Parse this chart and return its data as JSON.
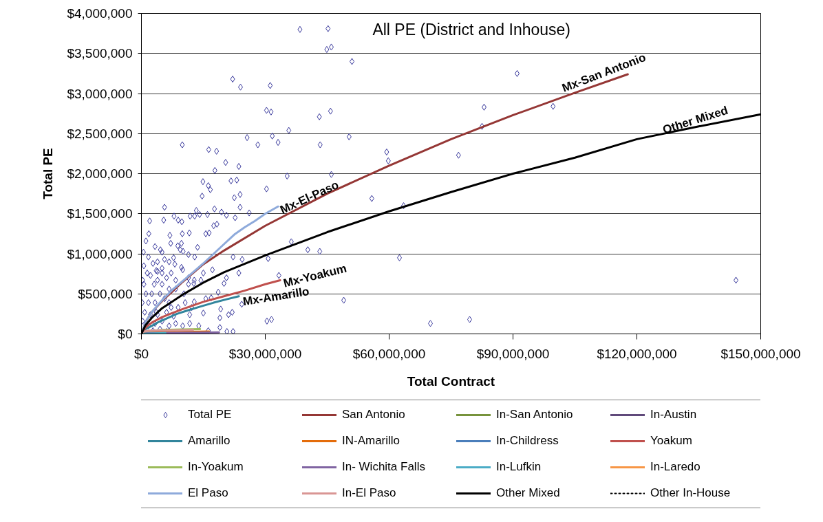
{
  "chart_data": {
    "type": "scatter",
    "title": "All PE (District and Inhouse)",
    "xlabel": "Total Contract",
    "ylabel": "Total PE",
    "xlim": [
      0,
      150000000
    ],
    "ylim": [
      0,
      4000000
    ],
    "xticks": [
      {
        "value": 0,
        "label": "$0"
      },
      {
        "value": 30000000,
        "label": "$30,000,000"
      },
      {
        "value": 60000000,
        "label": "$60,000,000"
      },
      {
        "value": 90000000,
        "label": "$90,000,000"
      },
      {
        "value": 120000000,
        "label": "$120,000,000"
      },
      {
        "value": 150000000,
        "label": "$150,000,000"
      }
    ],
    "yticks": [
      {
        "value": 0,
        "label": "$0"
      },
      {
        "value": 500000,
        "label": "$500,000"
      },
      {
        "value": 1000000,
        "label": "$1,000,000"
      },
      {
        "value": 1500000,
        "label": "$1,500,000"
      },
      {
        "value": 2000000,
        "label": "$2,000,000"
      },
      {
        "value": 2500000,
        "label": "$2,500,000"
      },
      {
        "value": 3000000,
        "label": "$3,000,000"
      },
      {
        "value": 3500000,
        "label": "$3,500,000"
      },
      {
        "value": 4000000,
        "label": "$4,000,000"
      }
    ],
    "grid": "y",
    "legend": "bottom",
    "series": [
      {
        "name": "Total PE",
        "marker": "diamond",
        "color": "#35359a",
        "x": [
          38400000,
          45200000,
          44900000,
          46000000,
          51000000,
          22100000,
          24000000,
          31200000,
          30300000,
          31400000,
          43100000,
          45800000,
          35700000,
          25600000,
          31700000,
          33100000,
          28200000,
          43300000,
          50300000,
          9900000,
          16300000,
          18200000,
          20400000,
          23600000,
          17800000,
          59400000,
          59800000,
          35300000,
          46000000,
          91000000,
          83000000,
          99700000,
          82500000,
          76800000,
          55800000,
          63500000,
          62500000,
          49000000,
          70000000,
          79500000,
          144000000,
          14900000,
          16200000,
          16700000,
          21700000,
          23100000,
          30300000,
          14700000,
          22500000,
          23900000,
          5600000,
          7900000,
          8900000,
          9800000,
          11800000,
          12900000,
          14100000,
          13300000,
          16000000,
          17700000,
          19400000,
          20600000,
          22700000,
          23900000,
          26100000,
          2000000,
          1800000,
          5400000,
          6900000,
          9900000,
          11600000,
          15600000,
          16400000,
          17500000,
          18300000,
          7100000,
          8800000,
          9700000,
          13600000,
          3300000,
          4600000,
          5000000,
          9400000,
          10100000,
          11400000,
          12900000,
          22200000,
          24400000,
          30700000,
          36300000,
          40300000,
          43200000,
          5600000,
          6700000,
          7800000,
          8100000,
          3900000,
          5000000,
          9700000,
          10000000,
          17200000,
          15000000,
          20600000,
          23600000,
          11400000,
          12800000,
          20000000,
          14400000,
          33300000,
          15600000,
          16900000,
          18600000,
          24300000,
          12800000,
          11700000,
          15000000,
          19200000,
          19000000,
          21100000,
          22000000,
          30400000,
          31500000,
          16200000,
          19000000,
          20700000,
          22200000,
          11700000,
          13900000,
          3600000,
          6700000,
          8900000,
          8300000,
          10300000,
          11400000,
          12700000,
          600000,
          1100000,
          1700000,
          800000,
          2200000,
          3100000,
          3900000,
          5000000,
          4500000,
          5600000,
          3300000,
          2200000,
          3900000,
          6100000,
          7200000,
          1700000,
          3300000,
          5000000,
          6700000,
          8300000,
          10000000,
          600000,
          1400000,
          2800000,
          3600000,
          5000000,
          6100000,
          7200000,
          8300000,
          1700000,
          3900000,
          10600000,
          7800000,
          200000,
          300000,
          2800000,
          4500000,
          6100000,
          2500000,
          6700000,
          12200000,
          300000,
          500000,
          1100000
        ],
        "values": [
          3800000,
          3810000,
          3550000,
          3580000,
          3400000,
          3180000,
          3080000,
          3100000,
          2790000,
          2770000,
          2710000,
          2780000,
          2540000,
          2450000,
          2470000,
          2390000,
          2360000,
          2360000,
          2460000,
          2360000,
          2300000,
          2280000,
          2140000,
          2090000,
          2040000,
          2270000,
          2160000,
          1970000,
          1990000,
          3250000,
          2830000,
          2840000,
          2590000,
          2230000,
          1690000,
          1600000,
          950000,
          420000,
          130000,
          180000,
          670000,
          1900000,
          1850000,
          1800000,
          1910000,
          1920000,
          1810000,
          1720000,
          1700000,
          1740000,
          1580000,
          1470000,
          1420000,
          1400000,
          1470000,
          1470000,
          1490000,
          1540000,
          1490000,
          1560000,
          1520000,
          1480000,
          1450000,
          1580000,
          1510000,
          1410000,
          1250000,
          1420000,
          1230000,
          1250000,
          1260000,
          1250000,
          1260000,
          1350000,
          1370000,
          1130000,
          1100000,
          1130000,
          1080000,
          1090000,
          1050000,
          1020000,
          1050000,
          1030000,
          990000,
          960000,
          960000,
          930000,
          940000,
          1150000,
          1050000,
          1030000,
          930000,
          900000,
          950000,
          870000,
          780000,
          820000,
          830000,
          800000,
          800000,
          760000,
          700000,
          760000,
          700000,
          670000,
          630000,
          670000,
          730000,
          440000,
          450000,
          520000,
          370000,
          400000,
          240000,
          260000,
          310000,
          200000,
          240000,
          270000,
          160000,
          180000,
          40000,
          80000,
          30000,
          30000,
          130000,
          100000,
          270000,
          390000,
          330000,
          560000,
          500000,
          620000,
          630000,
          620000,
          500000,
          390000,
          270000,
          730000,
          620000,
          670000,
          620000,
          500000,
          440000,
          390000,
          240000,
          240000,
          270000,
          330000,
          100000,
          130000,
          160000,
          100000,
          130000,
          100000,
          850000,
          760000,
          880000,
          790000,
          760000,
          700000,
          760000,
          670000,
          960000,
          900000,
          390000,
          220000,
          390000,
          160000,
          40000,
          60000,
          30000,
          500000,
          560000,
          330000,
          670000,
          1020000,
          1160000
        ]
      },
      {
        "name": "San Antonio",
        "type": "line",
        "color": "#953735",
        "x": [
          0,
          1000000,
          2500000,
          5000000,
          10000000,
          15000000,
          20000000,
          30000000,
          45000000,
          60000000,
          75000000,
          90000000,
          105000000,
          117800000
        ],
        "values": [
          0,
          150000,
          270000,
          410000,
          650000,
          870000,
          1040000,
          1350000,
          1750000,
          2100000,
          2430000,
          2730000,
          3010000,
          3240000
        ]
      },
      {
        "name": "In-San Antonio",
        "type": "line",
        "color": "#77933c",
        "values": [
          null
        ]
      },
      {
        "name": "In-Austin",
        "type": "line",
        "color": "#604a7b",
        "values": [
          null
        ]
      },
      {
        "name": "Amarillo",
        "type": "line",
        "color": "#31859c",
        "x": [
          0,
          1000000,
          2500000,
          4200000,
          6000000,
          8600000,
          11000000,
          14200000,
          17500000,
          20500000,
          23600000
        ],
        "values": [
          0,
          60000,
          100000,
          150000,
          190000,
          250000,
          290000,
          340000,
          390000,
          430000,
          470000
        ]
      },
      {
        "name": "IN-Amarillo",
        "type": "line",
        "color": "#e46c0a",
        "x": [
          0,
          1000000,
          16400000
        ],
        "values": [
          0,
          20000,
          30000
        ]
      },
      {
        "name": "In-Childress",
        "type": "line",
        "color": "#4a7ebb",
        "values": [
          null
        ]
      },
      {
        "name": "Yoakum",
        "type": "line",
        "color": "#c0504d",
        "x": [
          0,
          1000000,
          2500000,
          5000000,
          7500000,
          10000000,
          15000000,
          20000000,
          25000000,
          30000000,
          33600000
        ],
        "values": [
          0,
          80000,
          140000,
          210000,
          260000,
          310000,
          400000,
          470000,
          540000,
          620000,
          670000
        ]
      },
      {
        "name": "In-Yoakum",
        "type": "line",
        "color": "#9bbb59",
        "x": [
          0,
          1000000,
          5000000,
          14200000
        ],
        "values": [
          0,
          30000,
          50000,
          60000
        ]
      },
      {
        "name": "In- Wichita Falls",
        "type": "line",
        "color": "#8064a2",
        "x": [
          0,
          2000000,
          18800000
        ],
        "values": [
          0,
          10000,
          20000
        ]
      },
      {
        "name": "In-Lufkin",
        "type": "line",
        "color": "#4bacc6",
        "x": [
          0,
          5800000
        ],
        "values": [
          0,
          10000
        ]
      },
      {
        "name": "In-Laredo",
        "type": "line",
        "color": "#f79646",
        "values": [
          null
        ]
      },
      {
        "name": "El Paso",
        "type": "line",
        "color": "#8eaadb",
        "x": [
          0,
          1000000,
          2500000,
          5000000,
          7500000,
          10000000,
          12500000,
          15000000,
          17500000,
          20000000,
          22500000,
          25000000,
          27500000,
          30000000,
          33100000
        ],
        "values": [
          0,
          150000,
          270000,
          420000,
          550000,
          660000,
          770000,
          880000,
          1000000,
          1120000,
          1240000,
          1330000,
          1410000,
          1500000,
          1590000
        ]
      },
      {
        "name": "In-El Paso",
        "type": "line",
        "color": "#d99694",
        "x": [
          0,
          500000,
          2000000,
          12500000
        ],
        "values": [
          0,
          30000,
          40000,
          50000
        ]
      },
      {
        "name": "Other Mixed",
        "type": "line",
        "color": "#000000",
        "x": [
          0,
          1000000,
          2500000,
          5000000,
          10000000,
          15000000,
          20000000,
          30000000,
          45000000,
          60000000,
          75000000,
          90000000,
          105000000,
          120000000,
          135000000,
          150000000
        ],
        "values": [
          0,
          110000,
          200000,
          320000,
          490000,
          640000,
          770000,
          980000,
          1270000,
          1530000,
          1770000,
          2000000,
          2200000,
          2430000,
          2590000,
          2740000
        ]
      },
      {
        "name": "Other In-House",
        "type": "line",
        "color": "#000000",
        "line_style": "dotted",
        "values": [
          null
        ]
      }
    ],
    "annotations": [
      {
        "text": "Mx-San Antonio",
        "x": 102000000,
        "y": 2950000
      },
      {
        "text": "Mx-El-Paso",
        "x": 33100000,
        "y": 1590000
      },
      {
        "text": "Mx-Yoakum",
        "x": 33600000,
        "y": 670000
      },
      {
        "text": "Mx-Amarillo",
        "x": 23600000,
        "y": 470000
      },
      {
        "text": "Other Mixed",
        "x": 126000000,
        "y": 2490000
      }
    ]
  }
}
